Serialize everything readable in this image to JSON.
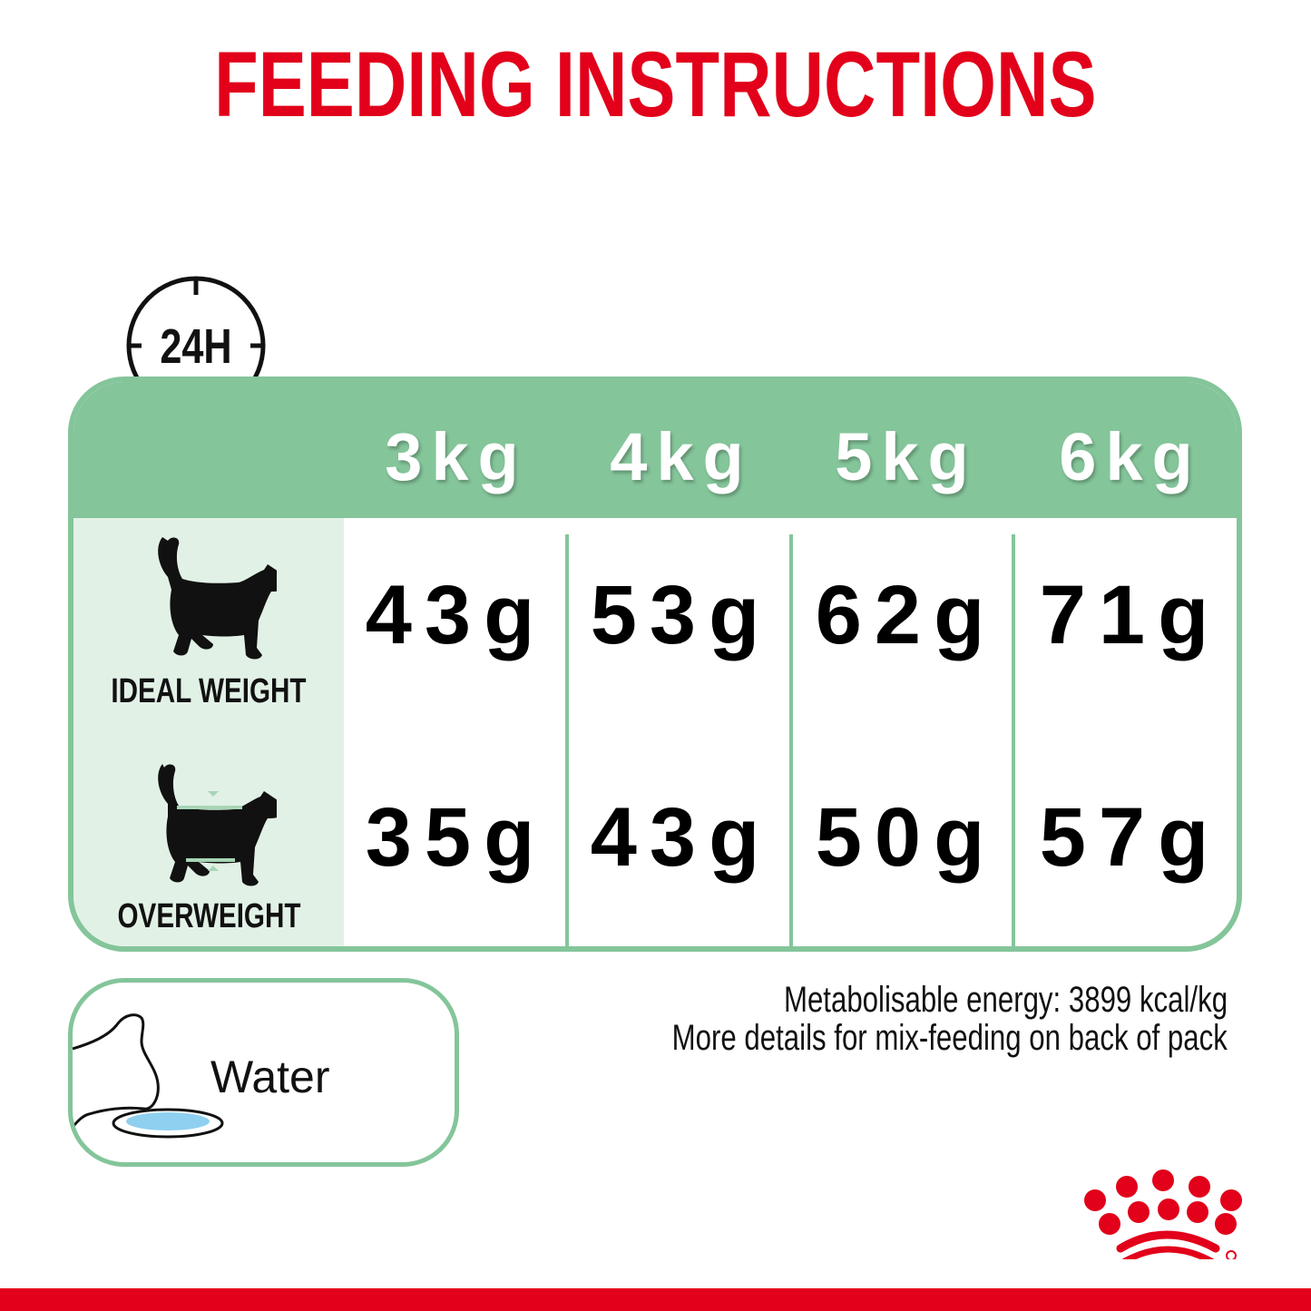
{
  "title": "FEEDING INSTRUCTIONS",
  "period_icon_label": "24H",
  "columns": [
    "3kg",
    "4kg",
    "5kg",
    "6kg"
  ],
  "rows": [
    {
      "label": "IDEAL WEIGHT",
      "icon": "cat-ideal-weight-icon",
      "values": [
        "43g",
        "53g",
        "62g",
        "71g"
      ]
    },
    {
      "label": "OVERWEIGHT",
      "icon": "cat-overweight-icon",
      "values": [
        "35g",
        "43g",
        "50g",
        "57g"
      ]
    }
  ],
  "water": {
    "label": "Water",
    "icon": "cat-drinking-water-icon"
  },
  "info": {
    "energy": "Metabolisable energy: 3899 kcal/kg",
    "mix_feeding": "More details for mix-feeding on back of pack"
  },
  "colors": {
    "brand_red": "#e2001a",
    "table_green": "#84c59a",
    "light_green": "#e2f1e6",
    "water_blue": "#8fd0f0"
  }
}
